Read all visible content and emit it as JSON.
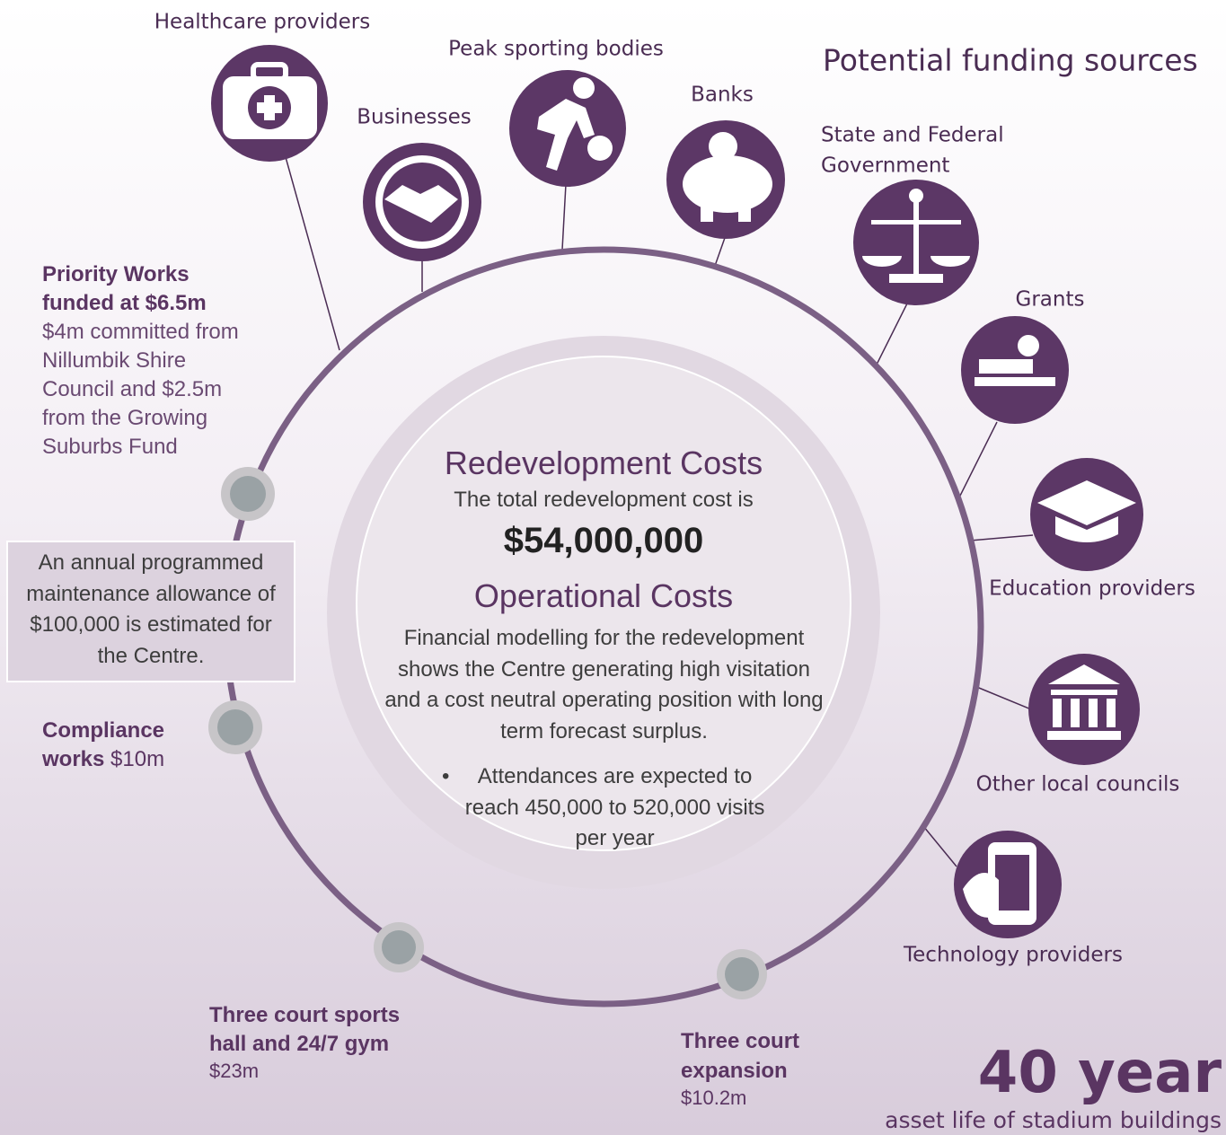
{
  "funding": {
    "title": "Potential funding sources",
    "sources": [
      {
        "label": "Healthcare providers"
      },
      {
        "label": "Businesses"
      },
      {
        "label": "Peak sporting bodies"
      },
      {
        "label": "Banks"
      },
      {
        "lines": [
          "State and Federal",
          "Government"
        ]
      },
      {
        "label": "Grants"
      },
      {
        "label": "Education providers"
      },
      {
        "label": "Other local councils"
      },
      {
        "label": "Technology providers"
      }
    ]
  },
  "center": {
    "heading1": "Redevelopment Costs",
    "intro": "The total redevelopment cost is",
    "total": "$54,000,000",
    "heading2": "Operational Costs",
    "paragraph": "Financial modelling for the redevelopment shows the Centre generating high visitation and a cost neutral operating position with long term forecast surplus.",
    "bullet": "Attendances are expected to reach 450,000 to 520,000 visits per year"
  },
  "maintenance": "An annual programmed maintenance allowance of $100,000 is estimated for the Centre.",
  "stages": [
    {
      "title": "Priority Works funded at $6.5m",
      "detail": "$4m committed from Nillumbik Shire Council and $2.5m from the Growing Suburbs Fund"
    },
    {
      "title": "Compliance works",
      "detail": "$10m"
    },
    {
      "title": "Three court sports hall and 24/7 gym",
      "detail": "$23m"
    },
    {
      "title": "Three court expansion",
      "detail": "$10.2m"
    }
  ],
  "asset_life": {
    "headline": "40 year",
    "caption": "asset life of stadium buildings"
  }
}
